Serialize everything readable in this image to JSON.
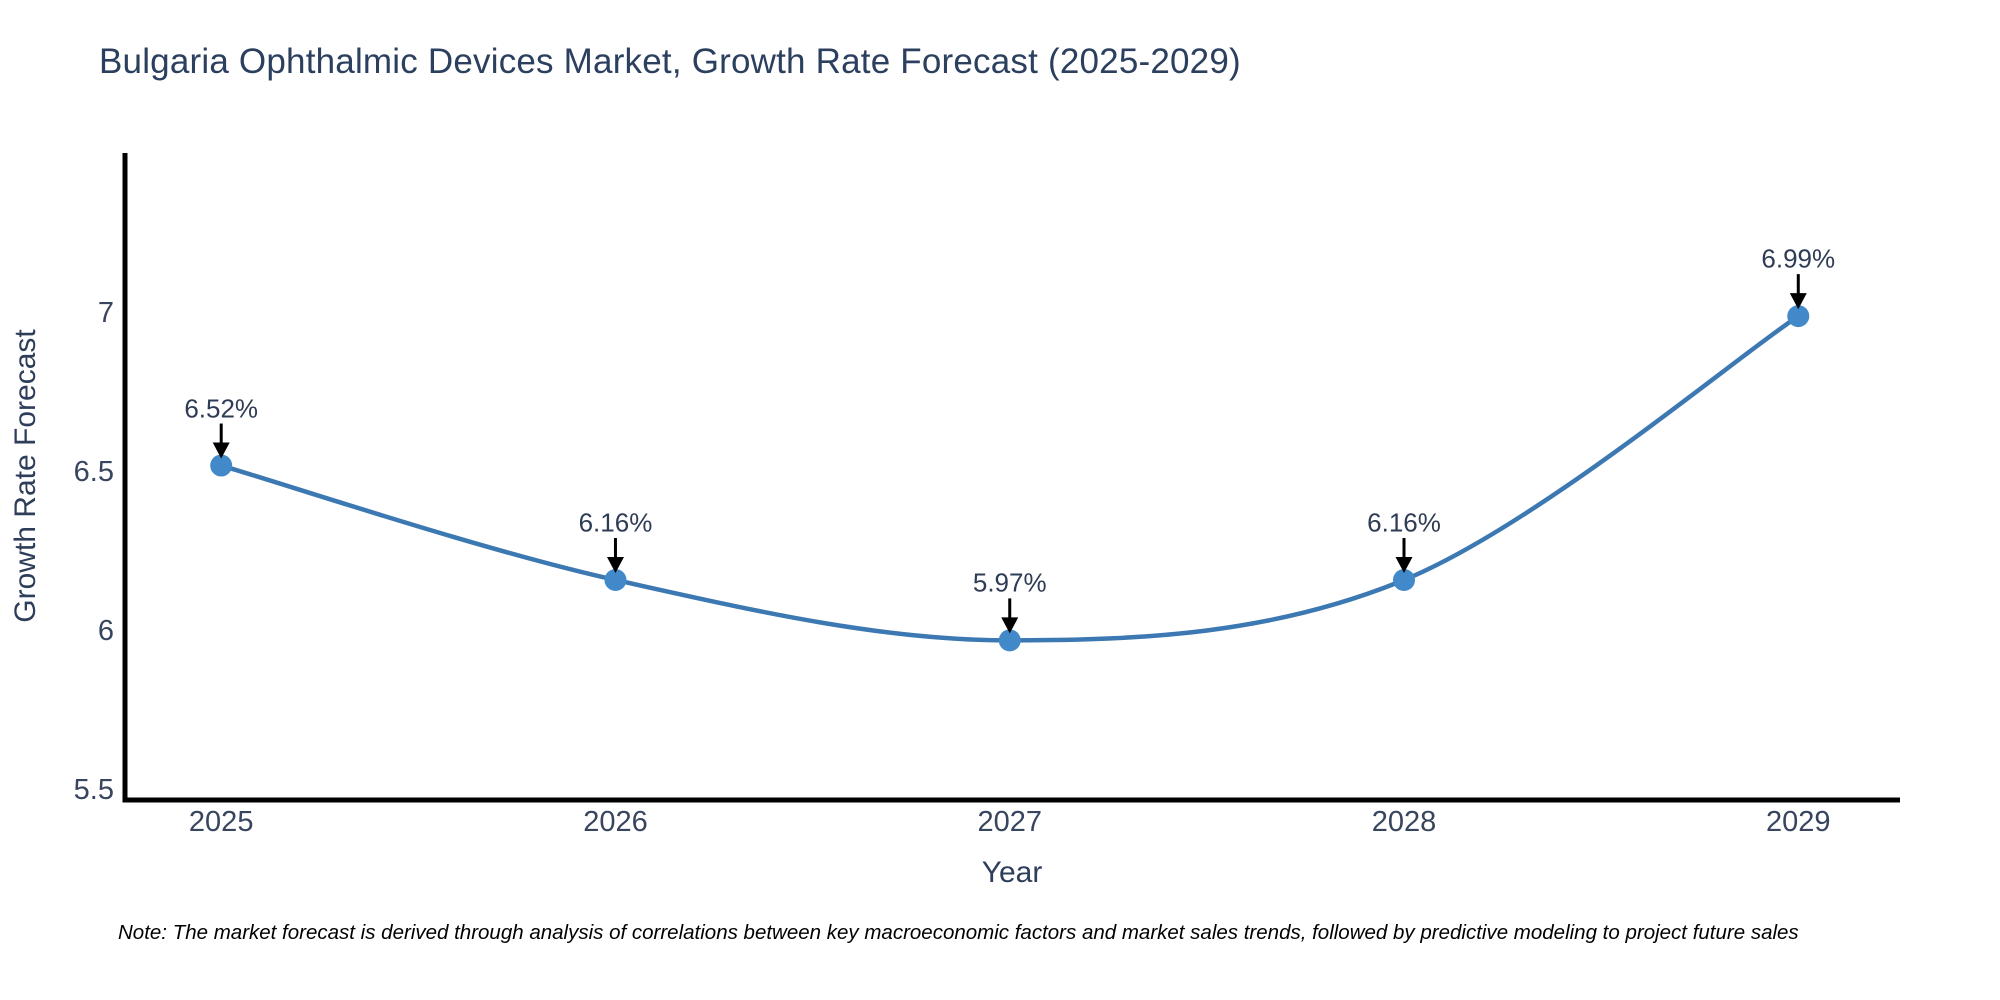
{
  "chart_data": {
    "type": "line",
    "title": "Bulgaria Ophthalmic Devices Market, Growth Rate Forecast (2025-2029)",
    "xlabel": "Year",
    "ylabel": "Growth Rate Forecast",
    "x": [
      2025,
      2026,
      2027,
      2028,
      2029
    ],
    "y": [
      6.52,
      6.16,
      5.97,
      6.16,
      6.99
    ],
    "point_labels": [
      "6.52%",
      "6.16%",
      "5.97%",
      "6.16%",
      "6.99%"
    ],
    "x_tick_labels": [
      "2025",
      "2026",
      "2027",
      "2028",
      "2029"
    ],
    "x_tick_values": [
      2025,
      2026,
      2027,
      2028,
      2029
    ],
    "y_tick_labels": [
      "5.5",
      "6",
      "6.5",
      "7"
    ],
    "y_tick_values": [
      5.5,
      6,
      6.5,
      7
    ],
    "xlim": [
      2024.756,
      2029.258
    ],
    "ylim": [
      5.468,
      7.503
    ],
    "grid": false,
    "legend": false,
    "smooth_line": true,
    "marker": "circle",
    "annotation_arrows": true,
    "colors": {
      "line": "#3c78b2",
      "marker": "#4189c8",
      "axis_spine": "#000000",
      "tick_text": "#38455e",
      "axis_title_text": "#2e3d59",
      "chart_title_text": "#2b3f5e",
      "annotation_text": "#2e3c55",
      "arrow": "#000000",
      "background": "#ffffff"
    }
  },
  "note": {
    "text": "Note: The market forecast is derived through analysis of correlations between key macroeconomic factors and market sales trends, followed by predictive modeling to project future sales"
  }
}
